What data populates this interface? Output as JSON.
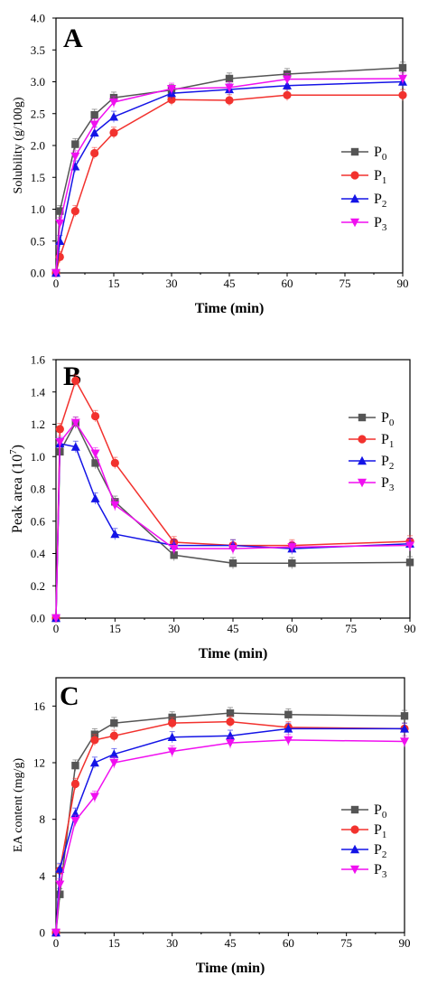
{
  "colors": {
    "P0": "#555555",
    "P1": "#f2322e",
    "P2": "#1414e6",
    "P3": "#f00ff0"
  },
  "chart_data": [
    {
      "panel": "A",
      "type": "line",
      "xlabel": "Time (min)",
      "ylabel": "Solubility (g/100g)",
      "xlim": [
        0,
        90
      ],
      "ylim": [
        0,
        4.0
      ],
      "xticks": [
        "0",
        "15",
        "30",
        "45",
        "60",
        "75",
        "90"
      ],
      "yticks": [
        "0.0",
        "0.5",
        "1.0",
        "1.5",
        "2.0",
        "2.5",
        "3.0",
        "3.5",
        "4.0"
      ],
      "legend_position": "middle-right",
      "x": [
        0,
        1,
        5,
        10,
        15,
        30,
        45,
        60,
        90
      ],
      "series": [
        {
          "name": "P0",
          "label_main": "P",
          "label_sub": "0",
          "marker": "square",
          "values": [
            0.0,
            0.97,
            2.02,
            2.48,
            2.75,
            2.87,
            3.05,
            3.12,
            3.22
          ]
        },
        {
          "name": "P1",
          "label_main": "P",
          "label_sub": "1",
          "marker": "circle",
          "values": [
            0.0,
            0.25,
            0.97,
            1.88,
            2.2,
            2.72,
            2.71,
            2.79,
            2.79
          ]
        },
        {
          "name": "P2",
          "label_main": "P",
          "label_sub": "2",
          "marker": "triangle-up",
          "values": [
            0.0,
            0.5,
            1.67,
            2.2,
            2.45,
            2.82,
            2.88,
            2.94,
            3.0
          ]
        },
        {
          "name": "P3",
          "label_main": "P",
          "label_sub": "3",
          "marker": "triangle-down",
          "values": [
            0.0,
            0.78,
            1.83,
            2.33,
            2.68,
            2.89,
            2.91,
            3.04,
            3.05
          ]
        }
      ]
    },
    {
      "panel": "B",
      "type": "line",
      "xlabel": "Time (min)",
      "ylabel_main": "Peak area (10",
      "ylabel_sup": "7",
      "ylabel_end": ")",
      "xlim": [
        0,
        90
      ],
      "ylim": [
        0,
        1.6
      ],
      "xticks": [
        "0",
        "15",
        "30",
        "45",
        "60",
        "75",
        "90"
      ],
      "yticks": [
        "0.0",
        "0.2",
        "0.4",
        "0.6",
        "0.8",
        "1.0",
        "1.2",
        "1.4",
        "1.6"
      ],
      "legend_position": "top-right",
      "x": [
        0,
        1,
        5,
        10,
        15,
        30,
        45,
        60,
        90
      ],
      "series": [
        {
          "name": "P0",
          "label_main": "P",
          "label_sub": "0",
          "marker": "square",
          "values": [
            0.0,
            1.03,
            1.21,
            0.96,
            0.72,
            0.39,
            0.34,
            0.34,
            0.345
          ]
        },
        {
          "name": "P1",
          "label_main": "P",
          "label_sub": "1",
          "marker": "circle",
          "values": [
            0.0,
            1.17,
            1.47,
            1.25,
            0.96,
            0.47,
            0.45,
            0.45,
            0.475
          ]
        },
        {
          "name": "P2",
          "label_main": "P",
          "label_sub": "2",
          "marker": "triangle-up",
          "values": [
            0.0,
            1.08,
            1.06,
            0.74,
            0.52,
            0.45,
            0.45,
            0.43,
            0.46
          ]
        },
        {
          "name": "P3",
          "label_main": "P",
          "label_sub": "3",
          "marker": "triangle-down",
          "values": [
            0.0,
            1.09,
            1.21,
            1.02,
            0.7,
            0.43,
            0.43,
            0.44,
            0.45
          ]
        }
      ]
    },
    {
      "panel": "C",
      "type": "line",
      "xlabel": "Time (min)",
      "ylabel": "EA content (mg/g)",
      "xlim": [
        0,
        90
      ],
      "ylim": [
        0,
        18
      ],
      "xticks": [
        "0",
        "15",
        "30",
        "45",
        "60",
        "75",
        "90"
      ],
      "yticks": [
        "0",
        "4",
        "8",
        "12",
        "16"
      ],
      "legend_position": "bottom-right",
      "x": [
        0,
        1,
        5,
        10,
        15,
        30,
        45,
        60,
        90
      ],
      "series": [
        {
          "name": "P0",
          "label_main": "P",
          "label_sub": "0",
          "marker": "square",
          "values": [
            0.0,
            2.7,
            11.8,
            14.0,
            14.8,
            15.2,
            15.5,
            15.4,
            15.3
          ]
        },
        {
          "name": "P1",
          "label_main": "P",
          "label_sub": "1",
          "marker": "circle",
          "values": [
            0.0,
            4.4,
            10.5,
            13.6,
            13.9,
            14.8,
            14.9,
            14.5,
            14.4
          ]
        },
        {
          "name": "P2",
          "label_main": "P",
          "label_sub": "2",
          "marker": "triangle-up",
          "values": [
            0.0,
            4.5,
            8.4,
            12.0,
            12.6,
            13.8,
            13.9,
            14.4,
            14.4
          ]
        },
        {
          "name": "P3",
          "label_main": "P",
          "label_sub": "3",
          "marker": "triangle-down",
          "values": [
            0.0,
            3.4,
            7.9,
            9.6,
            12.0,
            12.8,
            13.4,
            13.6,
            13.5
          ]
        }
      ]
    }
  ]
}
